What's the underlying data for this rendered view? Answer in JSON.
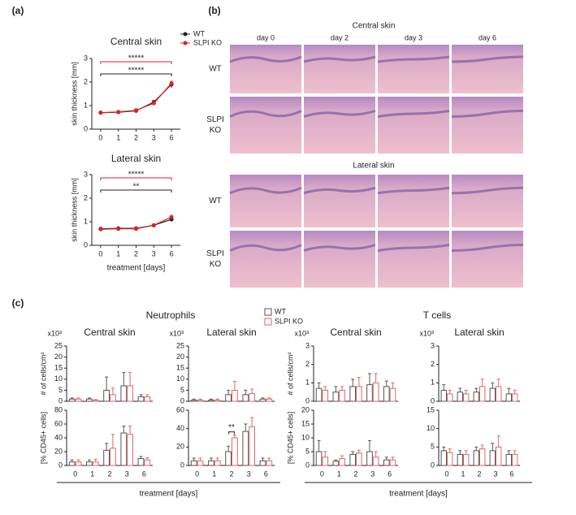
{
  "panel_labels": [
    "(a)",
    "(b)",
    "(c)"
  ],
  "chart_data": [
    {
      "type": "line",
      "title": "Central skin",
      "ylabel": "skin thickness [mm]",
      "categories": [
        "0",
        "1",
        "2",
        "3",
        "6"
      ],
      "series": [
        {
          "name": "WT",
          "color": "#222222",
          "values": [
            0.7,
            0.72,
            0.78,
            1.15,
            1.9
          ],
          "errors": [
            0.03,
            0.03,
            0.04,
            0.08,
            0.15
          ]
        },
        {
          "name": "SLPI KO",
          "color": "#e02020",
          "values": [
            0.7,
            0.73,
            0.8,
            1.1,
            1.95
          ],
          "errors": [
            0.03,
            0.03,
            0.04,
            0.08,
            0.12
          ]
        }
      ],
      "ylim": [
        0,
        3
      ],
      "yticks": [
        0,
        1,
        2,
        3
      ],
      "annotations": [
        {
          "text": "*****",
          "color": "#e02020"
        },
        {
          "text": "*****",
          "color": "#222222"
        }
      ]
    },
    {
      "type": "line",
      "title": "Lateral skin",
      "ylabel": "skin thickness [mm]",
      "xlabel": "treatment [days]",
      "categories": [
        "0",
        "1",
        "2",
        "3",
        "6"
      ],
      "series": [
        {
          "name": "WT",
          "color": "#222222",
          "values": [
            0.7,
            0.72,
            0.72,
            0.85,
            1.1
          ],
          "errors": [
            0.03,
            0.08,
            0.04,
            0.04,
            0.08
          ]
        },
        {
          "name": "SLPI KO",
          "color": "#e02020",
          "values": [
            0.68,
            0.7,
            0.7,
            0.85,
            1.2
          ],
          "errors": [
            0.03,
            0.04,
            0.03,
            0.04,
            0.1
          ]
        }
      ],
      "ylim": [
        0,
        3
      ],
      "yticks": [
        0,
        1,
        2,
        3
      ],
      "annotations": [
        {
          "text": "*****",
          "color": "#e02020"
        },
        {
          "text": "**",
          "color": "#222222"
        }
      ]
    },
    {
      "type": "bar",
      "title": "Central skin",
      "unit_label": "x10³",
      "ylabel": "# of cells/cm²",
      "series": [
        {
          "color": "#555555",
          "values": [
            1,
            1,
            5,
            7,
            2
          ],
          "errors": [
            0.5,
            0.5,
            6,
            6,
            1
          ]
        },
        {
          "color": "#e06666",
          "values": [
            1,
            0.5,
            3,
            7,
            2
          ],
          "errors": [
            0.5,
            0.3,
            3,
            6,
            1
          ]
        }
      ],
      "ylim": [
        0,
        25
      ],
      "yticks": [
        0,
        5,
        10,
        15,
        20,
        25
      ]
    },
    {
      "type": "bar",
      "ylabel": "[% CD45+ cells]",
      "categories": [
        "0",
        "1",
        "2",
        "3",
        "6"
      ],
      "series": [
        {
          "color": "#555555",
          "values": [
            5,
            5,
            22,
            47,
            10
          ],
          "errors": [
            3,
            3,
            10,
            10,
            3
          ]
        },
        {
          "color": "#e06666",
          "values": [
            5,
            5,
            25,
            45,
            8
          ],
          "errors": [
            3,
            4,
            20,
            12,
            3
          ]
        }
      ],
      "ylim": [
        0,
        80
      ],
      "yticks": [
        0,
        20,
        40,
        60,
        80
      ]
    },
    {
      "type": "bar",
      "title": "Lateral skin",
      "unit_label": "x10³",
      "series": [
        {
          "color": "#555555",
          "values": [
            0.5,
            0.5,
            3,
            3,
            1
          ],
          "errors": [
            0.5,
            0.5,
            2,
            2,
            0.5
          ]
        },
        {
          "color": "#e06666",
          "values": [
            0.5,
            0.5,
            5,
            3.5,
            1
          ],
          "errors": [
            0.5,
            0.5,
            4,
            2,
            0.5
          ]
        }
      ],
      "ylim": [
        0,
        25
      ],
      "yticks": [
        0,
        5,
        10,
        15,
        20,
        25
      ]
    },
    {
      "type": "bar",
      "categories": [
        "0",
        "1",
        "2",
        "3",
        "6"
      ],
      "series": [
        {
          "color": "#555555",
          "values": [
            5,
            5,
            15,
            37,
            5
          ],
          "errors": [
            3,
            3,
            6,
            8,
            3
          ]
        },
        {
          "color": "#e06666",
          "values": [
            5,
            5,
            30,
            42,
            5
          ],
          "errors": [
            3,
            3,
            3,
            10,
            3
          ]
        }
      ],
      "ylim": [
        0,
        60
      ],
      "yticks": [
        0,
        20,
        40,
        60
      ],
      "annotations": [
        {
          "text": "**",
          "color": "#222222"
        }
      ]
    },
    {
      "type": "bar",
      "title": "Central skin",
      "unit_label": "x10³",
      "ylabel": "# of cells/cm²",
      "series": [
        {
          "color": "#555555",
          "values": [
            0.7,
            0.5,
            0.8,
            0.9,
            0.8
          ],
          "errors": [
            0.3,
            0.3,
            0.4,
            0.6,
            0.3
          ]
        },
        {
          "color": "#e06666",
          "values": [
            0.6,
            0.6,
            0.8,
            1.0,
            0.7
          ],
          "errors": [
            0.2,
            0.2,
            0.5,
            0.5,
            0.3
          ]
        }
      ],
      "ylim": [
        0,
        3
      ],
      "yticks": [
        0,
        1,
        2,
        3
      ]
    },
    {
      "type": "bar",
      "ylabel": "[% CD45+ cells]",
      "categories": [
        "0",
        "1",
        "2",
        "3",
        "6"
      ],
      "series": [
        {
          "color": "#555555",
          "values": [
            5,
            1.5,
            4,
            5,
            2
          ],
          "errors": [
            4,
            0.5,
            1,
            4,
            1
          ]
        },
        {
          "color": "#e06666",
          "values": [
            3,
            2.5,
            4.5,
            3,
            2
          ],
          "errors": [
            2,
            1,
            1,
            2,
            1
          ]
        }
      ],
      "ylim": [
        0,
        20
      ],
      "yticks": [
        0,
        5,
        10,
        15,
        20
      ]
    },
    {
      "type": "bar",
      "title": "Lateral skin",
      "unit_label": "x10³",
      "series": [
        {
          "color": "#555555",
          "values": [
            0.6,
            0.5,
            0.5,
            0.7,
            0.4
          ],
          "errors": [
            0.3,
            0.2,
            0.2,
            0.3,
            0.3
          ]
        },
        {
          "color": "#e06666",
          "values": [
            0.4,
            0.4,
            0.8,
            0.8,
            0.4
          ],
          "errors": [
            0.2,
            0.2,
            0.4,
            0.4,
            0.2
          ]
        }
      ],
      "ylim": [
        0,
        3
      ],
      "yticks": [
        0,
        1,
        2,
        3
      ]
    },
    {
      "type": "bar",
      "categories": [
        "0",
        "1",
        "2",
        "3",
        "6"
      ],
      "series": [
        {
          "color": "#555555",
          "values": [
            4,
            3,
            4,
            4,
            3
          ],
          "errors": [
            1,
            1,
            1,
            2,
            1
          ]
        },
        {
          "color": "#e06666",
          "values": [
            3.5,
            3,
            4.5,
            5,
            3
          ],
          "errors": [
            1,
            1,
            1,
            3,
            1
          ]
        }
      ],
      "ylim": [
        0,
        15
      ],
      "yticks": [
        0,
        5,
        10,
        15
      ]
    }
  ],
  "panel_c": {
    "groups": [
      {
        "title": "Neutrophils",
        "xlabel": "treatment [days]"
      },
      {
        "title": "T cells",
        "xlabel": "treatment [days]"
      }
    ],
    "legend": [
      {
        "name": "WT",
        "color": "#555555"
      },
      {
        "name": "SLPI KO",
        "color": "#e06666"
      }
    ]
  },
  "histology": {
    "sections": [
      {
        "title": "Central skin",
        "columns": [
          "day 0",
          "day 2",
          "day 3",
          "day 6"
        ],
        "rows": [
          [
            "WT"
          ],
          [
            "SLPI",
            "KO"
          ]
        ]
      },
      {
        "title": "Lateral skin",
        "rows": [
          [
            "WT"
          ],
          [
            "SLPI",
            "KO"
          ]
        ]
      }
    ]
  }
}
